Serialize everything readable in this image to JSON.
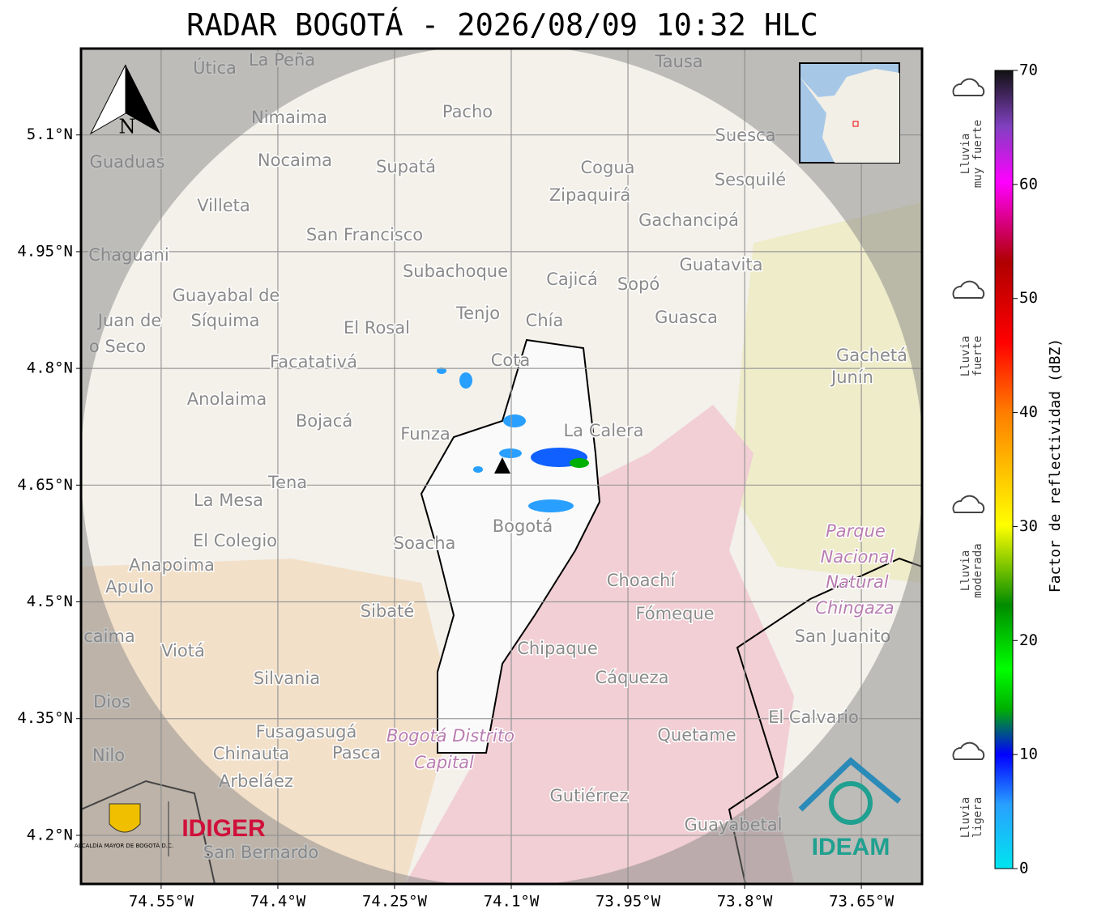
{
  "title": "RADAR BOGOTÁ - 2026/08/09 10:32 HLC",
  "map": {
    "xlim": [
      -74.653,
      -73.572
    ],
    "ylim": [
      4.1375,
      5.211
    ],
    "xticks": [
      {
        "value": -74.55,
        "label": "74.55°W"
      },
      {
        "value": -74.4,
        "label": "74.4°W"
      },
      {
        "value": -74.25,
        "label": "74.25°W"
      },
      {
        "value": -74.1,
        "label": "74.1°W"
      },
      {
        "value": -73.95,
        "label": "73.95°W"
      },
      {
        "value": -73.8,
        "label": "73.8°W"
      },
      {
        "value": -73.65,
        "label": "73.65°W"
      }
    ],
    "yticks": [
      {
        "value": 5.1,
        "label": "5.1°N"
      },
      {
        "value": 4.95,
        "label": "4.95°N"
      },
      {
        "value": 4.8,
        "label": "4.8°N"
      },
      {
        "value": 4.65,
        "label": "4.65°N"
      },
      {
        "value": 4.5,
        "label": "4.5°N"
      },
      {
        "value": 4.35,
        "label": "4.35°N"
      },
      {
        "value": 4.2,
        "label": "4.2°N"
      }
    ],
    "north": "N",
    "places": [
      "Útica",
      "La Peña",
      "Tausa",
      "Pacho",
      "Nimaima",
      "Guaduas",
      "Nocaima",
      "Supatá",
      "Cogua",
      "Suesca",
      "Sesquilé",
      "Zipaquirá",
      "Villeta",
      "Gachancipá",
      "San Francisco",
      "Chaguani",
      "Guatavita",
      "Subachoque",
      "Cajicá",
      "Sopó",
      "Guayabal de",
      "Síquima",
      "Tenjo",
      "Chía",
      "Guasca",
      "Juan de",
      "El Rosal",
      "o Seco",
      "Facatativá",
      "Gachetá",
      "Junín",
      "Anolaima",
      "Cota",
      "Bojacá",
      "Funza",
      "La Calera",
      "Tena",
      "La Mesa",
      "Bogotá",
      "Parque",
      "Nacional",
      "Natural",
      "Chingaza",
      "El Colegio",
      "Soacha",
      "Anapoima",
      "Apulo",
      "Choachí",
      "Sibaté",
      "Fómeque",
      "San Juanito",
      "caima",
      "Viotá",
      "Chipaque",
      "Cáqueza",
      "Silvania",
      "Dios",
      "El Calvario",
      "Fusagasugá",
      "Quetame",
      "Bogotá Distrito",
      "Capital",
      "Nilo",
      "Chinauta",
      "Pasca",
      "Arbeláez",
      "Gutiérrez",
      "Guayabetal",
      "San Bernardo"
    ],
    "logos": {
      "alcaldia": "ALCALDÍA MAYOR DE BOGOTÁ D.C.",
      "idiger": "IDIGER",
      "ideam": "IDEAM"
    }
  },
  "colorbar": {
    "label": "Factor de reflectividad (dBZ)",
    "range": [
      0,
      70
    ],
    "ticks": [
      0,
      10,
      20,
      30,
      40,
      50,
      60,
      70
    ],
    "legend": [
      [
        "Lluvia",
        "muy fuerte"
      ],
      [
        "Lluvia",
        "fuerte"
      ],
      [
        "Lluvia",
        "moderada"
      ],
      [
        "Lluvia",
        "ligera"
      ]
    ]
  }
}
